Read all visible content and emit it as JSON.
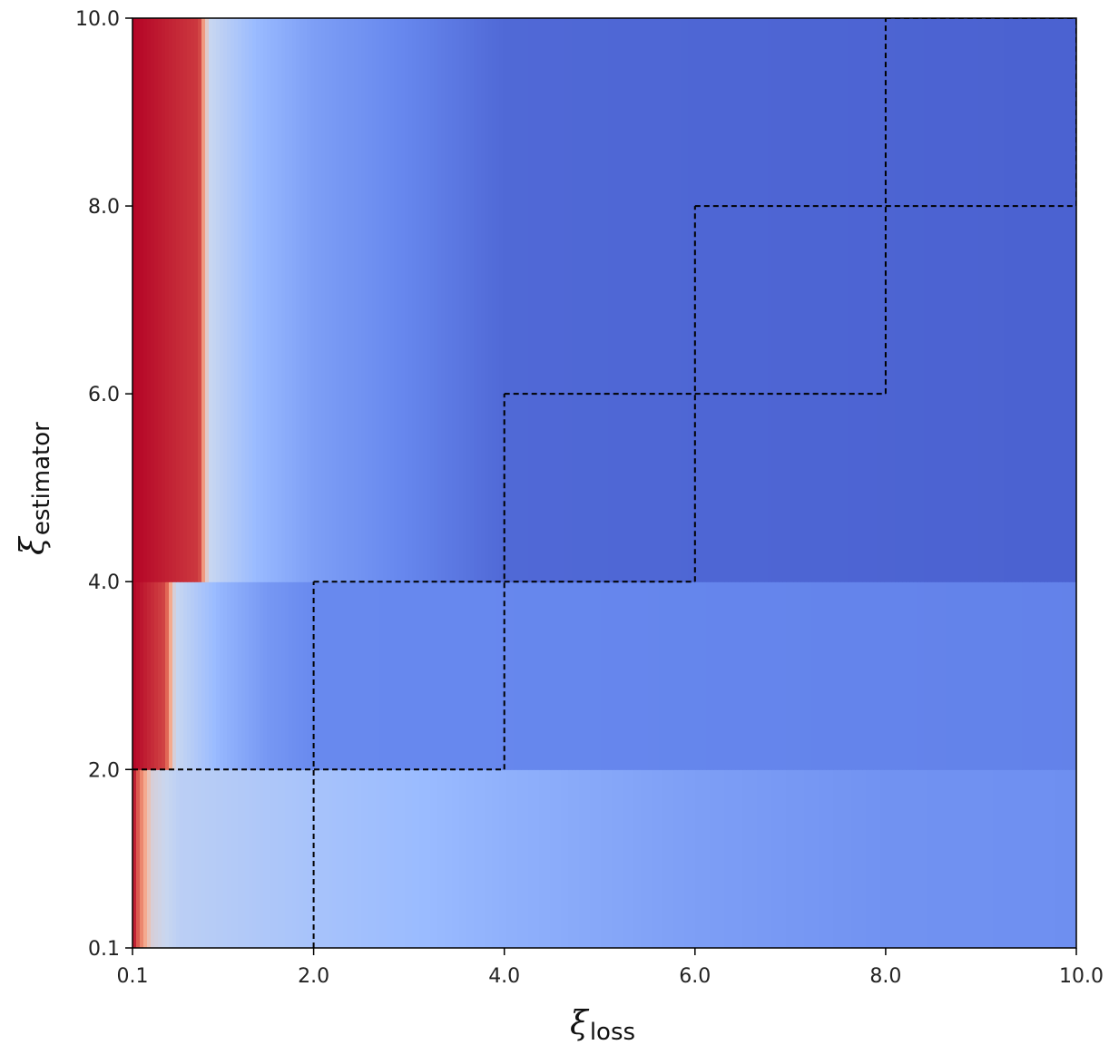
{
  "chart_data": {
    "type": "heatmap",
    "title": "",
    "xlabel": {
      "symbol": "ξ",
      "subscript": "loss"
    },
    "ylabel": {
      "symbol": "ξ",
      "subscript": "estimator"
    },
    "xlim": [
      0.1,
      10.0
    ],
    "ylim": [
      0.1,
      10.0
    ],
    "x_ticks": [
      0.1,
      2.0,
      4.0,
      6.0,
      8.0,
      10.0
    ],
    "y_ticks": [
      0.1,
      2.0,
      4.0,
      6.0,
      8.0,
      10.0
    ],
    "x_tick_labels": [
      "0.1",
      "2.0",
      "4.0",
      "6.0",
      "8.0",
      "10.0"
    ],
    "y_tick_labels": [
      "0.1",
      "2.0",
      "4.0",
      "6.0",
      "8.0",
      "10.0"
    ],
    "colormap": "coolwarm",
    "colormap_stops": [
      "#3b4cc0",
      "#6788ee",
      "#9abbff",
      "#c9d7f0",
      "#f7b89c",
      "#e7745b",
      "#b40426"
    ],
    "field_description_bands": [
      {
        "y_range": [
          0.1,
          2.0
        ],
        "x_value_profile": [
          [
            0.1,
            1.0
          ],
          [
            0.3,
            0.55
          ],
          [
            0.6,
            0.45
          ],
          [
            2.0,
            0.38
          ],
          [
            4.0,
            0.3
          ],
          [
            6.0,
            0.24
          ],
          [
            8.0,
            0.2
          ],
          [
            10.0,
            0.19
          ]
        ]
      },
      {
        "y_range": [
          2.0,
          4.0
        ],
        "x_value_profile": [
          [
            0.1,
            1.0
          ],
          [
            0.45,
            0.9
          ],
          [
            0.55,
            0.5
          ],
          [
            1.0,
            0.32
          ],
          [
            1.5,
            0.22
          ],
          [
            2.0,
            0.17
          ],
          [
            10.0,
            0.15
          ]
        ]
      },
      {
        "y_range": [
          4.0,
          10.0
        ],
        "x_value_profile": [
          [
            0.1,
            1.0
          ],
          [
            0.8,
            0.92
          ],
          [
            0.9,
            0.5
          ],
          [
            1.4,
            0.33
          ],
          [
            2.0,
            0.24
          ],
          [
            3.0,
            0.16
          ],
          [
            4.0,
            0.08
          ],
          [
            10.0,
            0.06
          ]
        ]
      }
    ],
    "boundary_steps_x": [
      0.1,
      2.0,
      4.0,
      6.0,
      8.0,
      10.0
    ],
    "boundary_steps_y": [
      0.1,
      2.0,
      4.0,
      6.0,
      8.0,
      10.0
    ],
    "boundary_style": "dashed",
    "grid": false,
    "legend": "none"
  }
}
